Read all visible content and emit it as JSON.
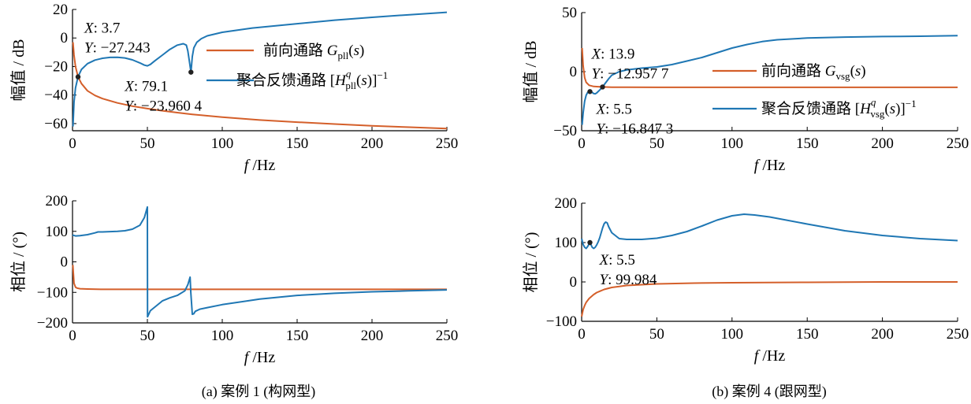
{
  "colors": {
    "forward": "#d45f2a",
    "feedback": "#1f77b4",
    "axis": "#000000"
  },
  "captions": {
    "a": "(a)  案例 1 (构网型)",
    "b": "(b)  案例 4 (跟网型)"
  },
  "chart_data": [
    {
      "id": "a-mag",
      "type": "line",
      "xlabel": "f /Hz",
      "ylabel": "幅值 / dB",
      "xlim": [
        0,
        250
      ],
      "ylim": [
        -65,
        20
      ],
      "xticks": [
        "0",
        "50",
        "100",
        "150",
        "200",
        "250"
      ],
      "yticks": [
        "20",
        "0",
        "−20",
        "−40",
        "−60"
      ],
      "legend": {
        "placement": "upper-right",
        "entries": [
          "前向通路 Gpll(s)",
          "聚合反馈通路 [Hqpll(s)]−1"
        ]
      },
      "series": [
        {
          "name": "前向通路 Gpll(s)",
          "color": "forward",
          "x": [
            0.3,
            1,
            2,
            3.7,
            6,
            10,
            15,
            20,
            30,
            40,
            50,
            60,
            70,
            80,
            90,
            100,
            125,
            150,
            175,
            200,
            225,
            250
          ],
          "y": [
            -3,
            -12,
            -20,
            -27.2,
            -32,
            -37,
            -40.3,
            -42.5,
            -45.5,
            -47.8,
            -49.5,
            -51,
            -52.3,
            -53.5,
            -54.5,
            -55.5,
            -57.5,
            -59,
            -60.3,
            -61.5,
            -62.5,
            -63.5
          ]
        },
        {
          "name": "聚合反馈通路 [Hqpll(s)]−1",
          "color": "feedback",
          "x": [
            0.3,
            1,
            2,
            3.7,
            6,
            10,
            15,
            20,
            25,
            30,
            35,
            40,
            45,
            48,
            50,
            52,
            55,
            60,
            65,
            70,
            74,
            76,
            77,
            78,
            79.1,
            80,
            81,
            83,
            86,
            90,
            100,
            120,
            150,
            175,
            200,
            225,
            250
          ],
          "y": [
            -62,
            -45,
            -35,
            -27.2,
            -22,
            -18,
            -15.5,
            -14.2,
            -13.6,
            -13.5,
            -14,
            -15.3,
            -17.5,
            -19,
            -19.5,
            -18.5,
            -16,
            -12,
            -8,
            -5,
            -4,
            -5,
            -9,
            -16,
            -24,
            -13,
            -7,
            -3,
            -0.5,
            1.5,
            4,
            7,
            10,
            12.5,
            14.5,
            16.3,
            18
          ]
        }
      ],
      "annotations": [
        {
          "x": 3.7,
          "y": -27.243,
          "lines": [
            "X: 3.7",
            "Y: −27.243"
          ]
        },
        {
          "x": 79.1,
          "y": -23.9604,
          "lines": [
            "X: 79.1",
            "Y: −23.960 4"
          ]
        }
      ]
    },
    {
      "id": "a-phase",
      "type": "line",
      "xlabel": "f /Hz",
      "ylabel": "相位 / (°)",
      "xlim": [
        0,
        250
      ],
      "ylim": [
        -200,
        200
      ],
      "xticks": [
        "0",
        "50",
        "100",
        "150",
        "200",
        "250"
      ],
      "yticks": [
        "200",
        "100",
        "0",
        "−100",
        "−200"
      ],
      "series": [
        {
          "name": "前向通路 Gpll(s)",
          "color": "forward",
          "x": [
            0.2,
            1,
            2,
            3,
            5,
            10,
            20,
            50,
            100,
            150,
            200,
            250
          ],
          "y": [
            -10,
            -70,
            -83,
            -86,
            -88,
            -89,
            -90,
            -90,
            -90,
            -90,
            -90,
            -90
          ]
        },
        {
          "name": "聚合反馈通路 [Hqpll(s)]−1",
          "color": "feedback",
          "x": [
            0,
            2,
            5,
            10,
            15,
            17,
            20,
            25,
            30,
            35,
            40,
            45,
            48,
            50,
            50.1,
            52,
            55,
            60,
            65,
            70,
            75,
            77,
            78.5,
            79,
            80,
            81,
            82,
            85,
            90,
            100,
            125,
            150,
            175,
            200,
            225,
            250
          ],
          "y": [
            88,
            85,
            86,
            89,
            95,
            98,
            98,
            99,
            100,
            102,
            107,
            120,
            145,
            180,
            -180,
            -160,
            -148,
            -128,
            -118,
            -110,
            -95,
            -75,
            -50,
            -100,
            -172,
            -170,
            -162,
            -155,
            -150,
            -140,
            -122,
            -110,
            -103,
            -98,
            -95,
            -92
          ]
        }
      ]
    },
    {
      "id": "b-mag",
      "type": "line",
      "xlabel": "f /Hz",
      "ylabel": "幅值 / dB",
      "xlim": [
        0,
        250
      ],
      "ylim": [
        -50,
        50
      ],
      "xticks": [
        "0",
        "50",
        "100",
        "150",
        "200",
        "250"
      ],
      "yticks": [
        "50",
        "0",
        "−50"
      ],
      "legend": {
        "placement": "right",
        "entries": [
          "前向通路 Gvsg(s)",
          "聚合反馈通路 [Hqvsg(s)]−1"
        ]
      },
      "series": [
        {
          "name": "前向通路 Gvsg(s)",
          "color": "forward",
          "x": [
            0.3,
            1,
            2,
            3,
            5,
            8,
            13.9,
            20,
            30,
            50,
            100,
            150,
            200,
            250
          ],
          "y": [
            20,
            5,
            -5,
            -9,
            -11.5,
            -12.5,
            -12.96,
            -13.1,
            -13.2,
            -13.3,
            -13.3,
            -13.3,
            -13.3,
            -13.3
          ]
        },
        {
          "name": "聚合反馈通路 [Hqvsg(s)]−1",
          "color": "feedback",
          "x": [
            0.3,
            1,
            2,
            3,
            4,
            5.5,
            7,
            8,
            9,
            10,
            12,
            13.9,
            15,
            18,
            20,
            25,
            30,
            40,
            50,
            60,
            70,
            80,
            90,
            100,
            110,
            120,
            130,
            150,
            175,
            200,
            225,
            250
          ],
          "y": [
            -45,
            -35,
            -25,
            -20,
            -17.5,
            -16.85,
            -17.5,
            -18.5,
            -18.8,
            -18,
            -15.5,
            -12.96,
            -11,
            -6,
            -3,
            0,
            1.5,
            3,
            4,
            6,
            9,
            12,
            16,
            20,
            23,
            25.5,
            27,
            28.5,
            29.3,
            29.7,
            30,
            30.5
          ]
        }
      ],
      "annotations": [
        {
          "x": 13.9,
          "y": -12.9577,
          "lines": [
            "X: 13.9",
            "Y: −12.957 7"
          ]
        },
        {
          "x": 5.5,
          "y": -16.8473,
          "lines": [
            "X: 5.5",
            "Y: −16.847 3"
          ]
        }
      ]
    },
    {
      "id": "b-phase",
      "type": "line",
      "xlabel": "f /Hz",
      "ylabel": "相位 / (°)",
      "xlim": [
        0,
        250
      ],
      "ylim": [
        -100,
        200
      ],
      "xticks": [
        "0",
        "50",
        "100",
        "150",
        "200",
        "250"
      ],
      "yticks": [
        "200",
        "100",
        "0",
        "−100"
      ],
      "series": [
        {
          "name": "前向通路 Gvsg(s)",
          "color": "forward",
          "x": [
            0,
            1,
            2,
            3,
            5,
            8,
            10,
            15,
            20,
            30,
            50,
            75,
            100,
            150,
            200,
            250
          ],
          "y": [
            -88,
            -70,
            -60,
            -52,
            -42,
            -32,
            -27,
            -19,
            -14,
            -9,
            -5,
            -3,
            -2,
            -1,
            0,
            0
          ]
        },
        {
          "name": "聚合反馈通路 [Hqvsg(s)]−1",
          "color": "feedback",
          "x": [
            0,
            1,
            2,
            3,
            4,
            5.5,
            7,
            8,
            9,
            10,
            11,
            12,
            13,
            14,
            15,
            16,
            17,
            18,
            20,
            25,
            30,
            40,
            50,
            60,
            70,
            80,
            90,
            100,
            108,
            115,
            125,
            150,
            175,
            200,
            225,
            250
          ],
          "y": [
            110,
            95,
            88,
            85,
            90,
            99.98,
            88,
            85,
            88,
            94,
            102,
            112,
            125,
            138,
            148,
            152,
            150,
            140,
            125,
            110,
            108,
            108,
            111,
            118,
            128,
            142,
            157,
            168,
            172,
            170,
            165,
            147,
            130,
            118,
            110,
            105
          ]
        }
      ],
      "annotations": [
        {
          "x": 5.5,
          "y": 99.984,
          "lines": [
            "X: 5.5",
            "Y: 99.984"
          ]
        }
      ]
    }
  ]
}
